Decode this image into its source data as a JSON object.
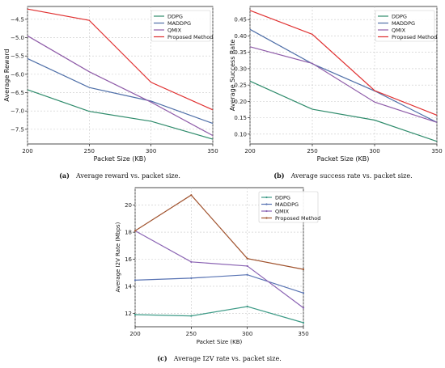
{
  "chart_data": [
    {
      "type": "line",
      "id": "a",
      "caption_tag": "(a)",
      "caption": "Average reward vs. packet size.",
      "xlabel": "Packet Size (KB)",
      "ylabel": "Average Reward",
      "x": [
        200,
        250,
        300,
        350
      ],
      "xticks": [
        "200",
        "250",
        "300",
        "350"
      ],
      "xlim": [
        200,
        350
      ],
      "ylim": [
        -7.9,
        -4.15
      ],
      "yticks": [
        -7.5,
        -7.0,
        -6.5,
        -6.0,
        -5.5,
        -5.0,
        -4.5
      ],
      "yticklabels": [
        "−7.5",
        "−7.0",
        "−6.5",
        "−6.0",
        "−5.5",
        "−5.0",
        "−4.5"
      ],
      "grid": true,
      "legend_position": "top-right",
      "series": [
        {
          "name": "DDPG",
          "color": "#2e8b6b",
          "values": [
            -6.42,
            -7.01,
            -7.28,
            -7.77
          ]
        },
        {
          "name": "MADDPG",
          "color": "#4f6fa8",
          "values": [
            -5.57,
            -6.36,
            -6.73,
            -7.34
          ]
        },
        {
          "name": "QMIX",
          "color": "#8e5ba8",
          "values": [
            -4.95,
            -5.93,
            -6.76,
            -7.67
          ]
        },
        {
          "name": "Proposed Method",
          "color": "#e03030",
          "values": [
            -4.22,
            -4.53,
            -6.22,
            -6.97
          ]
        }
      ]
    },
    {
      "type": "line",
      "id": "b",
      "caption_tag": "(b)",
      "caption": "Average success rate vs. packet size.",
      "xlabel": "Packet Size (KB)",
      "ylabel": "Average Success Rate",
      "x": [
        200,
        250,
        300,
        350
      ],
      "xticks": [
        "200",
        "250",
        "300",
        "350"
      ],
      "xlim": [
        200,
        350
      ],
      "ylim": [
        0.07,
        0.49
      ],
      "yticks": [
        0.1,
        0.15,
        0.2,
        0.25,
        0.3,
        0.35,
        0.4,
        0.45
      ],
      "yticklabels": [
        "0.10",
        "0.15",
        "0.20",
        "0.25",
        "0.30",
        "0.35",
        "0.40",
        "0.45"
      ],
      "grid": true,
      "legend_position": "top-right",
      "series": [
        {
          "name": "DDPG",
          "color": "#2e8b6b",
          "values": [
            0.262,
            0.176,
            0.143,
            0.078
          ]
        },
        {
          "name": "MADDPG",
          "color": "#4f6fa8",
          "values": [
            0.42,
            0.315,
            0.232,
            0.136
          ]
        },
        {
          "name": "QMIX",
          "color": "#8e5ba8",
          "values": [
            0.367,
            0.316,
            0.198,
            0.136
          ]
        },
        {
          "name": "Proposed Method",
          "color": "#e03030",
          "values": [
            0.478,
            0.405,
            0.233,
            0.158
          ]
        }
      ]
    },
    {
      "type": "line",
      "id": "c",
      "caption_tag": "(c)",
      "caption": "Average I2V rate vs. packet size.",
      "xlabel": "Packet Size (KB)",
      "ylabel": "Average I2V Rate (Mbps)",
      "x": [
        200,
        250,
        300,
        350
      ],
      "xticks": [
        "200",
        "250",
        "300",
        "350"
      ],
      "xlim": [
        200,
        350
      ],
      "ylim": [
        11.0,
        21.3
      ],
      "yticks": [
        12,
        14,
        16,
        18,
        20
      ],
      "yticklabels": [
        "12",
        "14",
        "16",
        "18",
        "20"
      ],
      "grid": true,
      "legend_position": "top-right",
      "series": [
        {
          "name": "DDPG",
          "color": "#3c9a86",
          "values": [
            11.9,
            11.8,
            12.5,
            11.3
          ]
        },
        {
          "name": "MADDPG",
          "color": "#5873b3",
          "values": [
            14.45,
            14.6,
            14.85,
            13.5
          ]
        },
        {
          "name": "QMIX",
          "color": "#8a63b3",
          "values": [
            18.1,
            15.8,
            15.5,
            12.4
          ]
        },
        {
          "name": "Proposed Method",
          "color": "#a0522d",
          "values": [
            18.1,
            20.75,
            16.05,
            15.25
          ]
        }
      ]
    }
  ]
}
